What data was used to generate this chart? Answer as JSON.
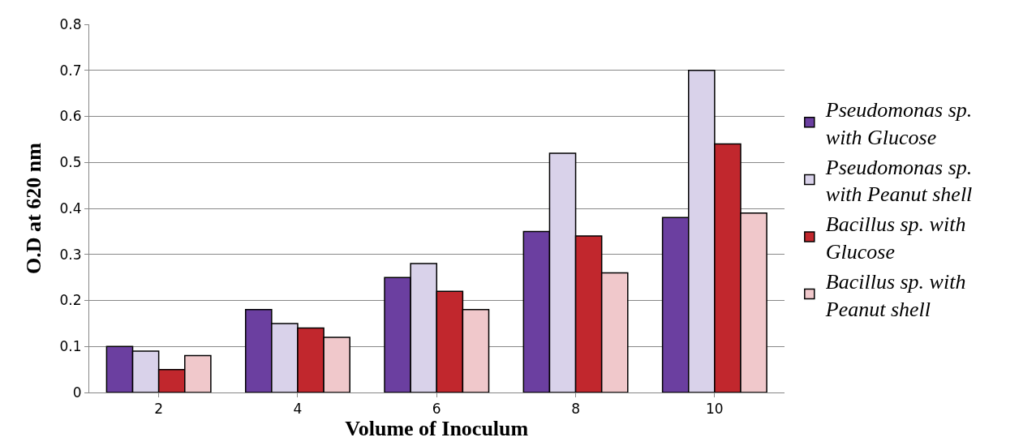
{
  "chart_data": {
    "type": "bar",
    "xlabel": "Volume of Inoculum",
    "ylabel": "O.D at 620 nm",
    "categories": [
      "2",
      "4",
      "6",
      "8",
      "10"
    ],
    "series": [
      {
        "name": "Pseudomonas sp. with Glucose",
        "color": "#6b3fa0",
        "values": [
          0.1,
          0.18,
          0.25,
          0.35,
          0.38
        ]
      },
      {
        "name": "Pseudomonas sp. with Peanut shell",
        "color": "#d9d2ea",
        "values": [
          0.09,
          0.15,
          0.28,
          0.52,
          0.7
        ]
      },
      {
        "name": "Bacillus sp. with Glucose",
        "color": "#c1272d",
        "values": [
          0.05,
          0.14,
          0.22,
          0.34,
          0.54
        ]
      },
      {
        "name": "Bacillus sp. with Peanut shell",
        "color": "#f0c8cb",
        "values": [
          0.08,
          0.12,
          0.18,
          0.26,
          0.39
        ]
      }
    ],
    "ylim": [
      0,
      0.8
    ],
    "yticks": [
      0,
      0.1,
      0.2,
      0.3,
      0.4,
      0.5,
      0.6,
      0.7,
      0.8
    ],
    "grid": "y",
    "legend": "right"
  }
}
